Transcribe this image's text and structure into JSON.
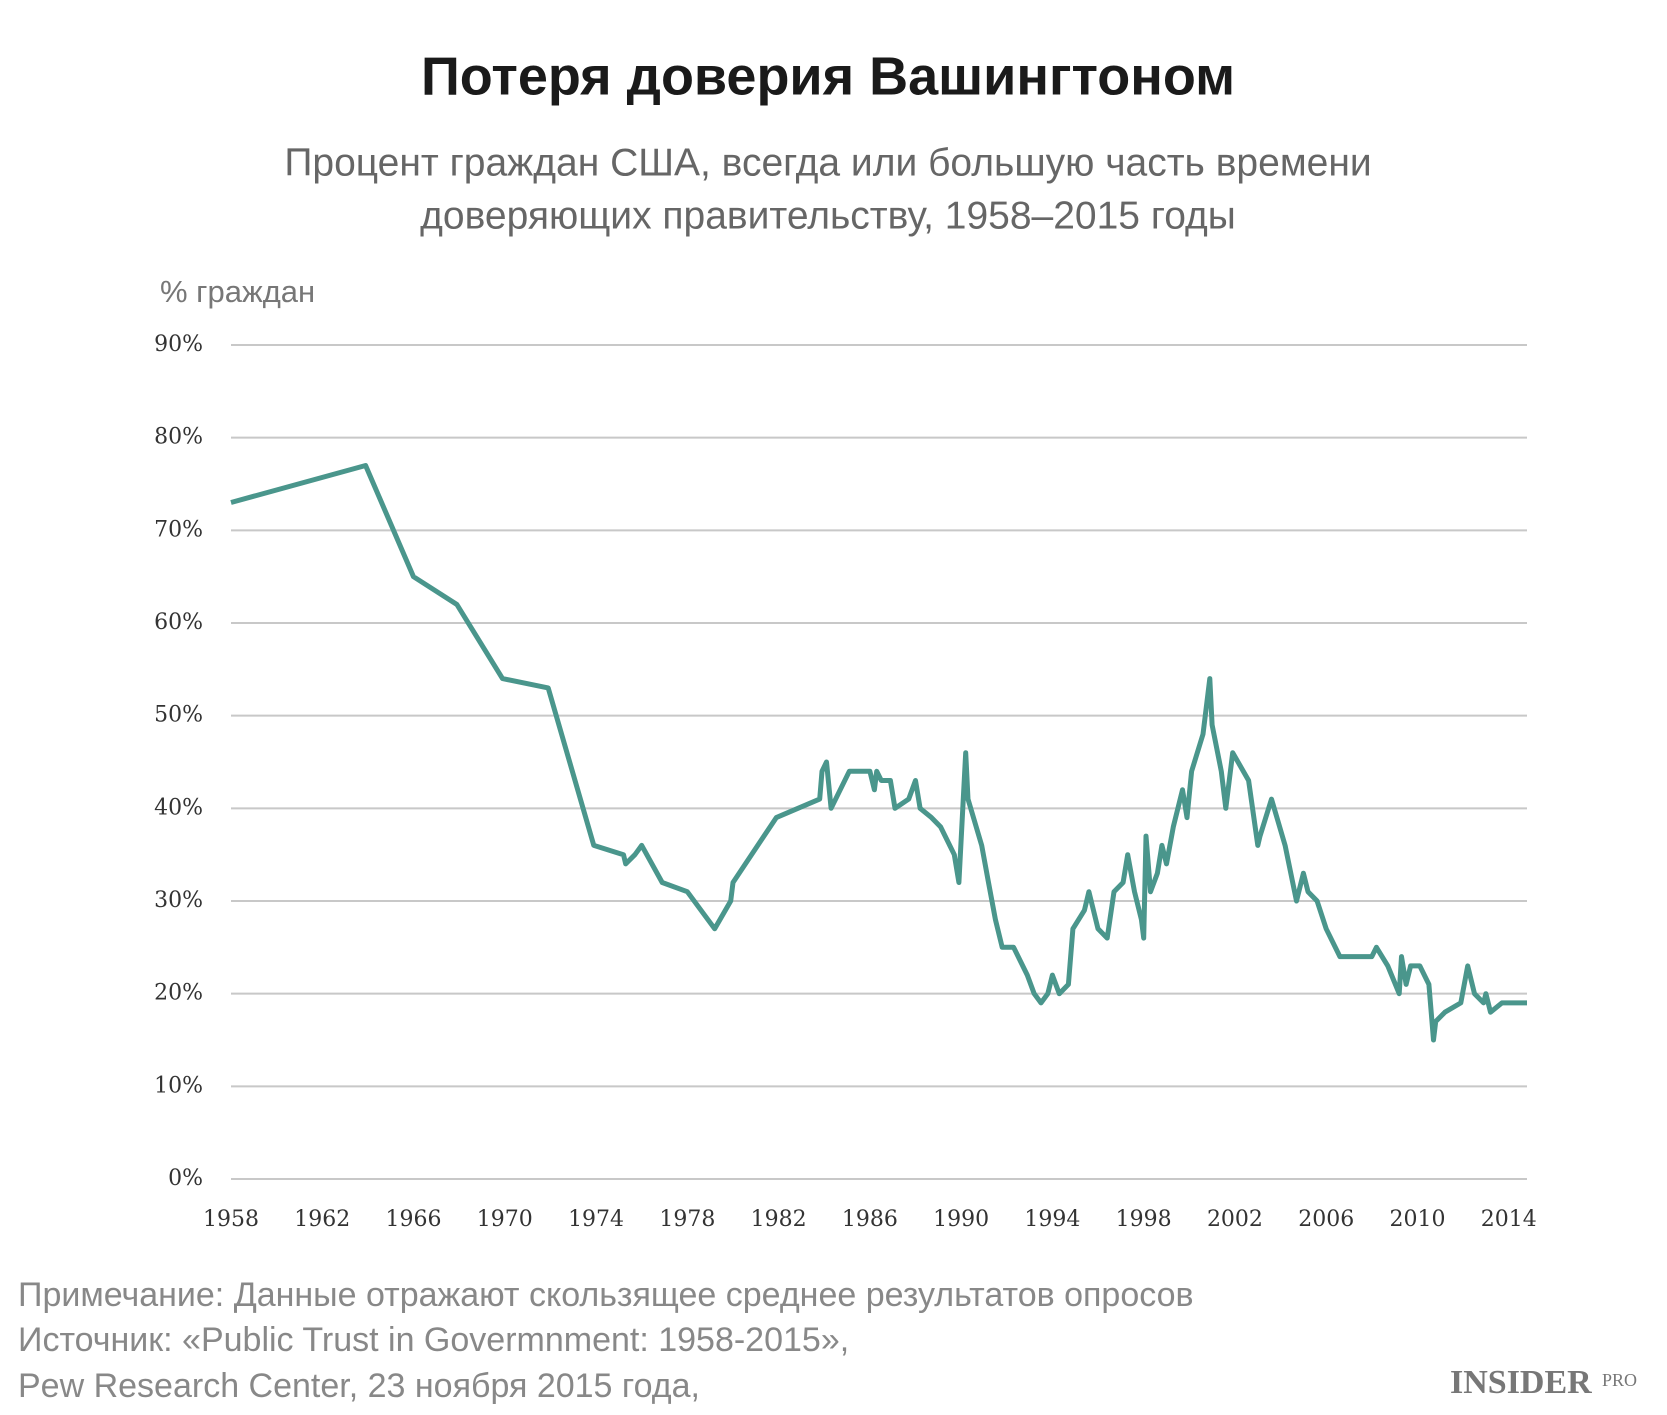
{
  "chart_data": {
    "type": "line",
    "title": "Потеря доверия Вашингтоном",
    "subtitle": [
      "Процент граждан США, всегда или большую часть времени",
      "доверяющих правительству, 1958–2015 годы"
    ],
    "y_label": "% граждан",
    "notes": [
      "Примечание: Данные отражают скользящее среднее результатов опросов",
      "Источник: «Public Trust in Govermnment: 1958-2015»,",
      "Pew Research Center, 23 ноября 2015 года,"
    ],
    "logo": [
      "INSIDER",
      "PRO"
    ],
    "xlim": [
      1958,
      2014.8
    ],
    "xticks": [
      1958,
      1962,
      1966,
      1970,
      1974,
      1978,
      1982,
      1986,
      1990,
      1994,
      1998,
      2002,
      2006,
      2010,
      2014
    ],
    "ylim": [
      0,
      90
    ],
    "yticks": [
      {
        "value": 0,
        "label": "0%"
      },
      {
        "value": 10,
        "label": "10%"
      },
      {
        "value": 20,
        "label": "20%"
      },
      {
        "value": 30,
        "label": "30%"
      },
      {
        "value": 40,
        "label": "40%"
      },
      {
        "value": 50,
        "label": "50%"
      },
      {
        "value": 60,
        "label": "60%"
      },
      {
        "value": 70,
        "label": "70%"
      },
      {
        "value": 80,
        "label": "80%"
      },
      {
        "value": 90,
        "label": "90%"
      }
    ],
    "grid": true,
    "series": [
      {
        "color": "#4a968c",
        "x": [
          1958,
          1963.9,
          1966.0,
          1967.9,
          1969.9,
          1971.9,
          1973.9,
          1975.2,
          1975.3,
          1975.7,
          1976.0,
          1976.9,
          1978.0,
          1979.2,
          1979.9,
          1980.0,
          1981.9,
          1983.8,
          1983.9,
          1984.1,
          1984.3,
          1985.1,
          1986.0,
          1986.2,
          1986.3,
          1986.5,
          1986.9,
          1987.1,
          1987.7,
          1988.0,
          1988.2,
          1988.7,
          1989.1,
          1989.7,
          1989.9,
          1990.2,
          1990.3,
          1990.9,
          1991.2,
          1991.5,
          1991.8,
          1992.3,
          1992.9,
          1993.2,
          1993.5,
          1993.8,
          1994.0,
          1994.3,
          1994.7,
          1994.9,
          1995.4,
          1995.6,
          1996.0,
          1996.4,
          1996.7,
          1997.1,
          1997.3,
          1997.6,
          1997.9,
          1998.0,
          1998.1,
          1998.3,
          1998.6,
          1998.8,
          1999.0,
          1999.3,
          1999.7,
          1999.9,
          2000.1,
          2000.6,
          2000.9,
          2001.0,
          2001.4,
          2001.6,
          2001.9,
          2002.6,
          2003.0,
          2003.1,
          2003.6,
          2004.2,
          2004.7,
          2005.0,
          2005.2,
          2005.6,
          2006.0,
          2006.6,
          2008.0,
          2008.2,
          2008.7,
          2009.2,
          2009.3,
          2009.5,
          2009.7,
          2010.1,
          2010.5,
          2010.7,
          2010.8,
          2011.2,
          2011.9,
          2012.2,
          2012.5,
          2012.9,
          2013.0,
          2013.2,
          2013.7,
          2014.8
        ],
        "values": [
          73,
          77,
          65,
          62,
          54,
          53,
          36,
          35,
          34,
          35,
          36,
          32,
          31,
          27,
          30,
          32,
          39,
          41,
          44,
          45,
          40,
          44,
          44,
          42,
          44,
          43,
          43,
          40,
          41,
          43,
          40,
          39,
          38,
          35,
          32,
          46,
          41,
          36,
          32,
          28,
          25,
          25,
          22,
          20,
          19,
          20,
          22,
          20,
          21,
          27,
          29,
          31,
          27,
          26,
          31,
          32,
          35,
          31,
          28,
          26,
          37,
          31,
          33,
          36,
          34,
          38,
          42,
          39,
          44,
          48,
          54,
          49,
          44,
          40,
          46,
          43,
          36,
          37,
          41,
          36,
          30,
          33,
          31,
          30,
          27,
          24,
          24,
          25,
          23,
          20,
          24,
          21,
          23,
          23,
          21,
          15,
          17,
          18,
          19,
          23,
          20,
          19,
          20,
          18,
          19,
          19
        ]
      }
    ]
  }
}
